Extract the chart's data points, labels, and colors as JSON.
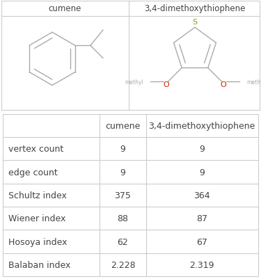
{
  "col1_header": "cumene",
  "col2_header": "3,4-dimethoxythiophene",
  "rows": [
    {
      "label": "vertex count",
      "val1": "9",
      "val2": "9"
    },
    {
      "label": "edge count",
      "val1": "9",
      "val2": "9"
    },
    {
      "label": "Schultz index",
      "val1": "375",
      "val2": "364"
    },
    {
      "label": "Wiener index",
      "val1": "88",
      "val2": "87"
    },
    {
      "label": "Hosoya index",
      "val1": "62",
      "val2": "67"
    },
    {
      "label": "Balaban index",
      "val1": "2.228",
      "val2": "2.319"
    }
  ],
  "bg_color": "#ffffff",
  "border_color": "#cccccc",
  "text_color": "#444444",
  "bond_color": "#aaaaaa",
  "sulfur_color": "#999900",
  "oxygen_color": "#cc2200",
  "font_size_label": 8.5,
  "font_size_cell": 9,
  "font_size_atom": 8
}
